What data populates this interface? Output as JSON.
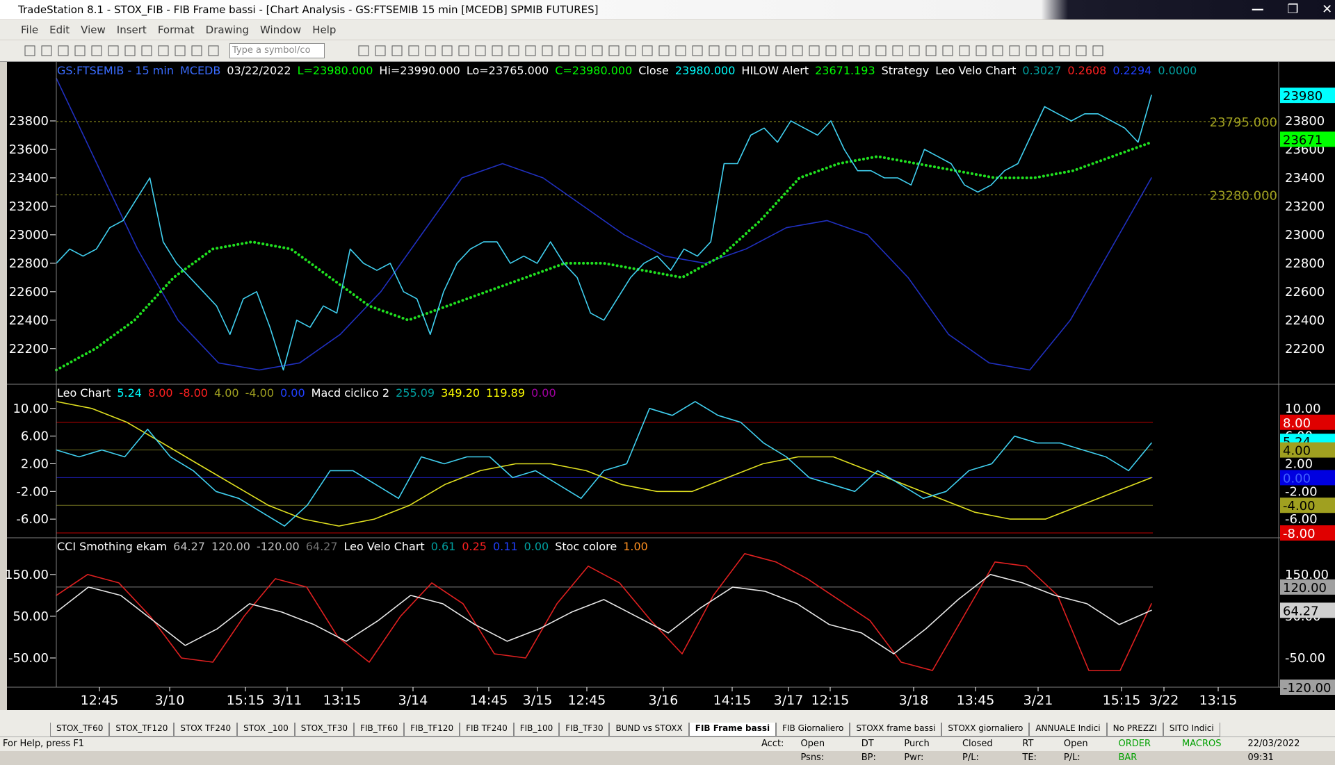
{
  "window": {
    "title": "TradeStation 8.1 - STOX_FIB - FIB Frame bassi - [Chart Analysis - GS:FTSEMIB  15 min  [MCEDB] SPMIB FUTURES]"
  },
  "menu": [
    "File",
    "Edit",
    "View",
    "Insert",
    "Format",
    "Drawing",
    "Window",
    "Help"
  ],
  "toolbar": {
    "symbol_placeholder": "Type a symbol/co"
  },
  "chart": {
    "panels": [
      {
        "header": [
          {
            "text": "GS:FTSEMIB - 15 min",
            "color": "#3a6cff"
          },
          {
            "text": "MCEDB",
            "color": "#3a6cff"
          },
          {
            "text": "03/22/2022",
            "color": "#ffffff"
          },
          {
            "text": "L=23980.000",
            "color": "#00ff00"
          },
          {
            "text": "Hi=23990.000",
            "color": "#ffffff"
          },
          {
            "text": "Lo=23765.000",
            "color": "#ffffff"
          },
          {
            "text": "C=23980.000",
            "color": "#00ff00"
          },
          {
            "text": "Close",
            "color": "#ffffff"
          },
          {
            "text": "23980.000",
            "color": "#00ffff"
          },
          {
            "text": "HILOW Alert",
            "color": "#ffffff"
          },
          {
            "text": "23671.193",
            "color": "#00ff00"
          },
          {
            "text": "Strategy",
            "color": "#ffffff"
          },
          {
            "text": "Leo Velo Chart",
            "color": "#ffffff"
          },
          {
            "text": "0.3027",
            "color": "#00a0a0"
          },
          {
            "text": "0.2608",
            "color": "#ff2020"
          },
          {
            "text": "0.2294",
            "color": "#2040ff"
          },
          {
            "text": "0.0000",
            "color": "#00a0a0"
          }
        ],
        "ylim": [
          21950,
          24215
        ],
        "yticks": [
          22200,
          22400,
          22600,
          22800,
          23000,
          23200,
          23400,
          23600,
          23800
        ],
        "right_labels": [
          {
            "value": 23980,
            "label": "23980",
            "bg": "#00ffff",
            "fg": "#000000"
          },
          {
            "value": 23795,
            "label": "23795.000",
            "bg": "none",
            "fg": "#a0a020",
            "line": "#a0a020"
          },
          {
            "value": 23671,
            "label": "23671",
            "bg": "#00ff00",
            "fg": "#000000"
          },
          {
            "value": 23280,
            "label": "23280.000",
            "bg": "none",
            "fg": "#a0a020",
            "line": "#a0a020"
          }
        ],
        "series": [
          {
            "color": "#2030c0",
            "style": "solid",
            "values": [
              24100,
              23500,
              22900,
              22400,
              22100,
              22050,
              22100,
              22300,
              22600,
              23000,
              23400,
              23500,
              23400,
              23200,
              23000,
              22850,
              22800,
              22900,
              23050,
              23100,
              23000,
              22700,
              22300,
              22100,
              22050,
              22400,
              22900,
              23400
            ]
          },
          {
            "color": "#20e020",
            "style": "dots",
            "values": [
              22050,
              22200,
              22400,
              22700,
              22900,
              22950,
              22900,
              22700,
              22500,
              22400,
              22500,
              22600,
              22700,
              22800,
              22800,
              22750,
              22700,
              22850,
              23100,
              23400,
              23500,
              23550,
              23500,
              23450,
              23400,
              23400,
              23450,
              23550,
              23650
            ]
          },
          {
            "color": "#40d0f0",
            "style": "solid",
            "values": [
              22800,
              22900,
              22850,
              22900,
              23050,
              23100,
              23250,
              23400,
              22950,
              22800,
              22700,
              22600,
              22500,
              22300,
              22550,
              22600,
              22350,
              22050,
              22400,
              22350,
              22500,
              22450,
              22900,
              22800,
              22750,
              22800,
              22600,
              22550,
              22300,
              22600,
              22800,
              22900,
              22950,
              22950,
              22800,
              22850,
              22800,
              22950,
              22800,
              22700,
              22450,
              22400,
              22550,
              22700,
              22800,
              22850,
              22750,
              22900,
              22850,
              22950,
              23500,
              23500,
              23700,
              23750,
              23650,
              23800,
              23750,
              23700,
              23800,
              23600,
              23450,
              23450,
              23400,
              23400,
              23350,
              23600,
              23550,
              23500,
              23350,
              23300,
              23350,
              23450,
              23500,
              23700,
              23900,
              23850,
              23800,
              23850,
              23850,
              23800,
              23750,
              23650,
              23980
            ]
          }
        ]
      },
      {
        "header": [
          {
            "text": "Leo Chart",
            "color": "#ffffff"
          },
          {
            "text": "5.24",
            "color": "#00ffff"
          },
          {
            "text": "8.00",
            "color": "#ff2020"
          },
          {
            "text": "-8.00",
            "color": "#ff2020"
          },
          {
            "text": "4.00",
            "color": "#a0a020"
          },
          {
            "text": "-4.00",
            "color": "#a0a020"
          },
          {
            "text": "0.00",
            "color": "#2040ff"
          },
          {
            "text": "Macd ciclico 2",
            "color": "#ffffff"
          },
          {
            "text": "255.09",
            "color": "#00a0a0"
          },
          {
            "text": "349.20",
            "color": "#ffff00"
          },
          {
            "text": "119.89",
            "color": "#ffff00"
          },
          {
            "text": "0.00",
            "color": "#a000a0"
          }
        ],
        "ylim": [
          -8.7,
          13.5
        ],
        "yticks": [
          {
            "value": 10,
            "label": "10.00"
          },
          {
            "value": 6,
            "label": "6.00"
          },
          {
            "value": 2,
            "label": "2.00"
          },
          {
            "value": -2,
            "label": "-2.00"
          },
          {
            "value": -6,
            "label": "-6.00"
          }
        ],
        "right_labels": [
          {
            "value": 8,
            "label": "8.00",
            "bg": "#e00000",
            "fg": "#ffffff",
            "line": "#c00000"
          },
          {
            "value": 5.24,
            "label": "5.24",
            "bg": "#00ffff",
            "fg": "#000000"
          },
          {
            "value": 4,
            "label": "4.00",
            "bg": "#a0a020",
            "fg": "#000000",
            "line": "#707020"
          },
          {
            "value": 0,
            "label": "0.00",
            "bg": "#0000e0",
            "fg": "#4060ff",
            "line": "#2020c0"
          },
          {
            "value": -4,
            "label": "-4.00",
            "bg": "#a0a020",
            "fg": "#000000",
            "line": "#707020"
          },
          {
            "value": -8,
            "label": "-8.00",
            "bg": "#e00000",
            "fg": "#ffffff",
            "line": "#c00000"
          }
        ],
        "series": [
          {
            "color": "#e0e020",
            "style": "solid",
            "values": [
              11,
              10,
              8,
              5,
              2,
              -1,
              -4,
              -6,
              -7,
              -6,
              -4,
              -1,
              1,
              2,
              2,
              1,
              -1,
              -2,
              -2,
              0,
              2,
              3,
              3,
              1,
              -1,
              -3,
              -5,
              -6,
              -6,
              -4,
              -2,
              0
            ]
          },
          {
            "color": "#40d0f0",
            "style": "solid",
            "values": [
              4,
              3,
              4,
              3,
              7,
              3,
              1,
              -2,
              -3,
              -5,
              -7,
              -4,
              1,
              1,
              -1,
              -3,
              3,
              2,
              3,
              3,
              0,
              1,
              -1,
              -3,
              1,
              2,
              10,
              9,
              11,
              9,
              8,
              5,
              3,
              0,
              -1,
              -2,
              1,
              -1,
              -3,
              -2,
              1,
              2,
              6,
              5,
              5,
              4,
              3,
              1,
              5
            ]
          }
        ]
      },
      {
        "header": [
          {
            "text": "CCI Smothing ekam",
            "color": "#ffffff"
          },
          {
            "text": "64.27",
            "color": "#c0c0c0"
          },
          {
            "text": "120.00",
            "color": "#c0c0c0"
          },
          {
            "text": "-120.00",
            "color": "#c0c0c0"
          },
          {
            "text": "64.27",
            "color": "#707070"
          },
          {
            "text": "Leo Velo Chart",
            "color": "#ffffff"
          },
          {
            "text": "0.61",
            "color": "#00a0a0"
          },
          {
            "text": "0.25",
            "color": "#ff2020"
          },
          {
            "text": "0.11",
            "color": "#2040ff"
          },
          {
            "text": "0.00",
            "color": "#00a0a0"
          },
          {
            "text": "Stoc colore",
            "color": "#ffffff"
          },
          {
            "text": "1.00",
            "color": "#ff9020"
          }
        ],
        "ylim": [
          -120,
          238
        ],
        "yticks": [
          {
            "value": 150,
            "label": "150.00"
          },
          {
            "value": 50,
            "label": "50.00"
          },
          {
            "value": -50,
            "label": "-50.00"
          }
        ],
        "right_labels": [
          {
            "value": 120,
            "label": "120.00",
            "bg": "#a0a0a0",
            "fg": "#000000",
            "line": "#808080"
          },
          {
            "value": 64.27,
            "label": "64.27",
            "bg": "#d0d0d0",
            "fg": "#000000"
          },
          {
            "value": -120,
            "label": "-120.00",
            "bg": "#a0a0a0",
            "fg": "#000000"
          }
        ],
        "series": [
          {
            "color": "#e02020",
            "style": "solid",
            "values": [
              100,
              150,
              130,
              50,
              -50,
              -60,
              50,
              140,
              120,
              0,
              -60,
              50,
              130,
              80,
              -40,
              -50,
              80,
              170,
              130,
              40,
              -40,
              100,
              200,
              180,
              140,
              90,
              40,
              -60,
              -80,
              50,
              180,
              170,
              100,
              -80,
              -80,
              80
            ]
          },
          {
            "color": "#e8e8e8",
            "style": "solid",
            "values": [
              60,
              120,
              100,
              40,
              -20,
              20,
              80,
              60,
              30,
              -10,
              40,
              100,
              80,
              30,
              -10,
              20,
              60,
              90,
              50,
              10,
              70,
              120,
              110,
              80,
              30,
              10,
              -40,
              20,
              90,
              150,
              130,
              100,
              80,
              30,
              64.27
            ]
          }
        ]
      }
    ],
    "x_labels": [
      "12:45",
      "3/10",
      "15:15",
      "3/11",
      "13:15",
      "3/14",
      "14:45",
      "3/15",
      "12:45",
      "3/16",
      "14:15",
      "3/17",
      "12:15",
      "3/18",
      "13:45",
      "3/21",
      "15:15",
      "3/22",
      "13:15"
    ]
  },
  "tabs": [
    "STOX_TF60",
    "STOX_TF120",
    "STOX TF240",
    "STOX _100",
    "STOX_TF30",
    "FIB_TF60",
    "FIB_TF120",
    "FIB TF240",
    "FIB_100",
    "FIB_TF30",
    "BUND vs STOXX",
    "FIB Frame bassi",
    "FIB Giornaliero",
    "STOXX frame bassi",
    "STOXX giornaliero",
    "ANNUALE Indici",
    "No PREZZI",
    "SITO Indici"
  ],
  "active_tab": "FIB Frame bassi",
  "status": {
    "help": "For Help, press F1",
    "fields": [
      "Acct:",
      "Open Psns:",
      "DT BP:",
      "Purch Pwr:",
      "Closed P/L:",
      "RT TE:",
      "Open P/L:"
    ],
    "order_bar": "ORDER BAR",
    "macros": "MACROS",
    "datetime": "22/03/2022 09:31"
  }
}
